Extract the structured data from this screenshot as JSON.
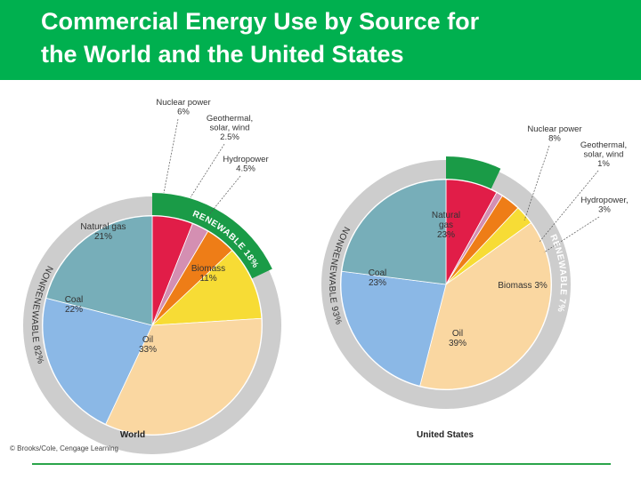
{
  "header": {
    "title_line1": "Commercial Energy Use by Source for",
    "title_line2": "the World and the United States"
  },
  "credit": "© Brooks/Cole, Cengage Learning",
  "colors": {
    "title_bar": "#00b04f",
    "ring": "#cdcdcd",
    "renewable_band": "#1a9b47",
    "footer_line": "#2aa54a"
  },
  "chart_data": [
    {
      "type": "pie",
      "title": "World",
      "slices": [
        {
          "name": "Nuclear power",
          "value": 6,
          "label": "6%",
          "color": "#e11d48"
        },
        {
          "name": "Geothermal, solar, wind",
          "value": 2.5,
          "label": "2.5%",
          "color": "#d48fb2"
        },
        {
          "name": "Hydropower",
          "value": 4.5,
          "label": "4.5%",
          "color": "#ee7d17"
        },
        {
          "name": "Biomass",
          "value": 11,
          "label": "11%",
          "color": "#f7dc35"
        },
        {
          "name": "Oil",
          "value": 33,
          "label": "33%",
          "color": "#fad7a1"
        },
        {
          "name": "Coal",
          "value": 22,
          "label": "22%",
          "color": "#8bb8e6"
        },
        {
          "name": "Natural gas",
          "value": 21,
          "label": "21%",
          "color": "#77aeb9"
        }
      ],
      "groups": [
        {
          "name": "RENEWABLE",
          "value": 18,
          "label": "RENEWABLE 18%"
        },
        {
          "name": "NONRENEWABLE",
          "value": 82,
          "label": "NONRENEWABLE 82%"
        }
      ]
    },
    {
      "type": "pie",
      "title": "United States",
      "slices": [
        {
          "name": "Nuclear power",
          "value": 8,
          "label": "8%",
          "color": "#e11d48"
        },
        {
          "name": "Geothermal, solar, wind",
          "value": 1,
          "label": "1%",
          "color": "#d48fb2"
        },
        {
          "name": "Hydropower",
          "value": 3,
          "label": "3%",
          "color": "#ee7d17"
        },
        {
          "name": "Biomass",
          "value": 3,
          "label": "3%",
          "color": "#f7dc35"
        },
        {
          "name": "Oil",
          "value": 39,
          "label": "39%",
          "color": "#fad7a1"
        },
        {
          "name": "Coal",
          "value": 23,
          "label": "23%",
          "color": "#8bb8e6"
        },
        {
          "name": "Natural gas",
          "value": 23,
          "label": "23%",
          "color": "#77aeb9"
        }
      ],
      "groups": [
        {
          "name": "RENEWABLE",
          "value": 7,
          "label": "RENEWABLE 7%"
        },
        {
          "name": "NONRENEWABLE",
          "value": 93,
          "label": "NONRENEWABLE 93%"
        }
      ]
    }
  ]
}
